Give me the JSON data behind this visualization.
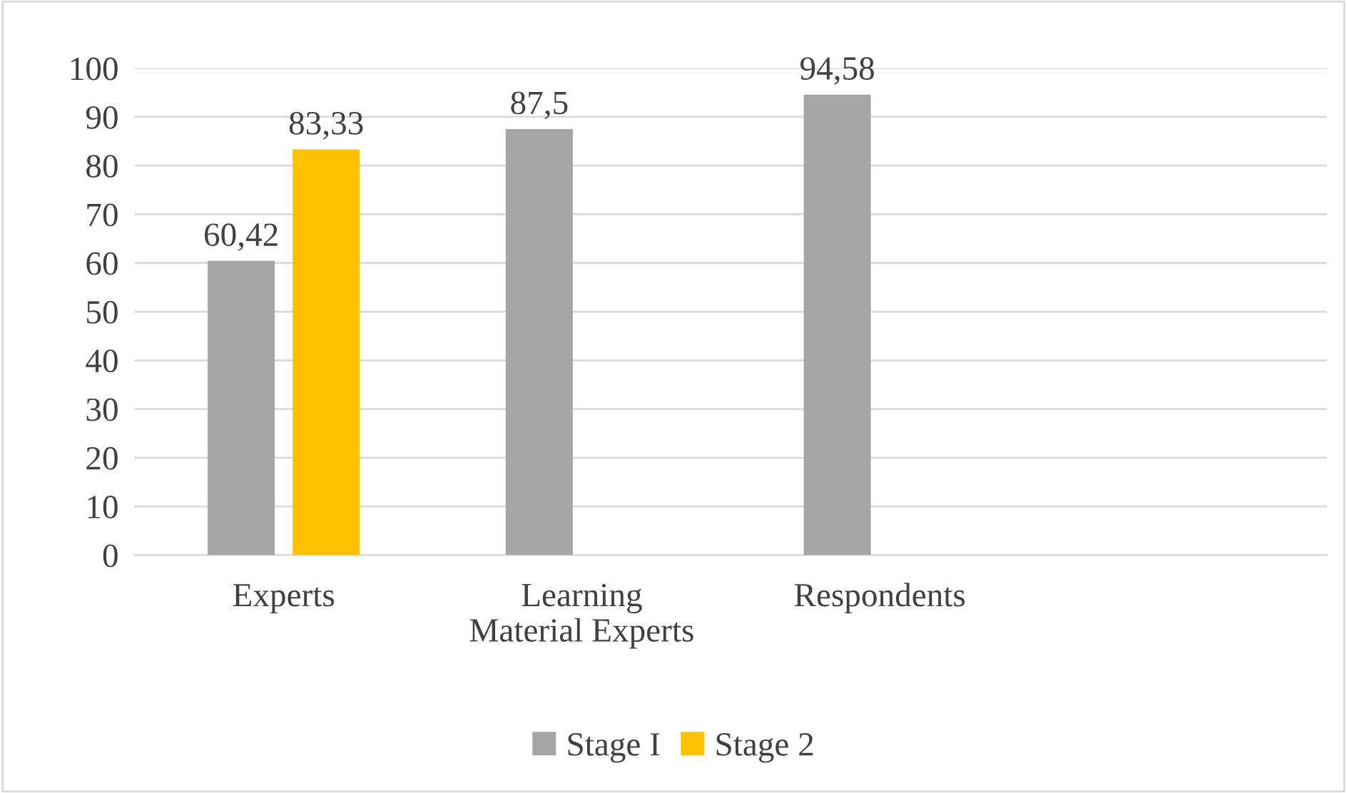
{
  "chart_data": {
    "type": "bar",
    "categories": [
      "Experts",
      "Learning\nMaterial Experts",
      "Respondents",
      null
    ],
    "series": [
      {
        "name": "Stage I",
        "color": "#a5a5a5",
        "values": [
          60.42,
          87.5,
          94.58,
          null
        ],
        "value_labels": [
          "60,42",
          "87,5",
          "94,58",
          null
        ]
      },
      {
        "name": "Stage 2",
        "color": "#ffc000",
        "values": [
          83.33,
          null,
          null,
          null
        ],
        "value_labels": [
          "83,33",
          null,
          null,
          null
        ]
      }
    ],
    "ylim": [
      0,
      100
    ],
    "yticks": [
      0,
      10,
      20,
      30,
      40,
      50,
      60,
      70,
      80,
      90,
      100
    ],
    "grid": "y",
    "legend": "bottom"
  }
}
